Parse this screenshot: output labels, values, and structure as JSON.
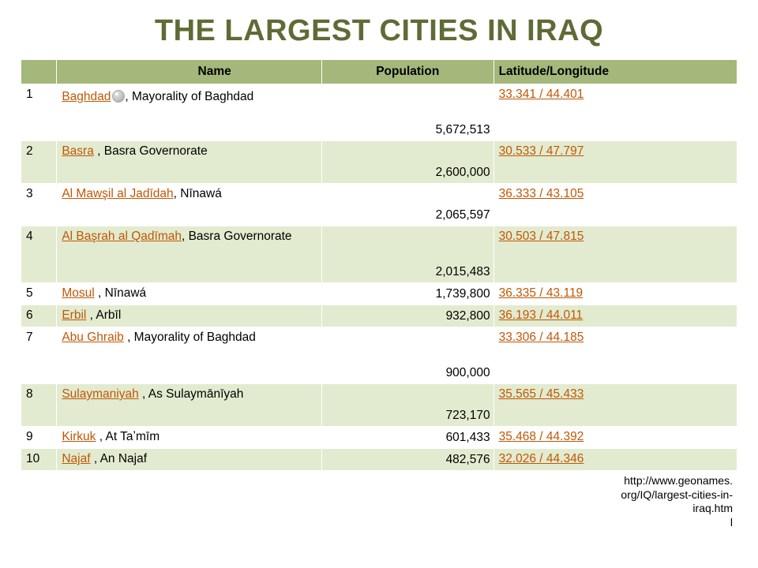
{
  "title": "THE LARGEST CITIES IN IRAQ",
  "headers": {
    "name": "Name",
    "population": "Population",
    "latlon": "Latitude/Longitude"
  },
  "rows": [
    {
      "rank": "1",
      "city": "Baghdad",
      "region": ", Mayorality of Baghdad",
      "population": "5,672,513",
      "coord": "33.341 / 44.401",
      "tall": "tall1",
      "icon": true
    },
    {
      "rank": "2",
      "city": "Basra",
      "region": " , Basra Governorate",
      "population": "2,600,000",
      "coord": "30.533 / 47.797",
      "tall": "tall2",
      "icon": false
    },
    {
      "rank": "3",
      "city": "Al Mawşil al Jadīdah",
      "region": ", Nīnawá",
      "population": "2,065,597",
      "coord": "36.333 / 43.105",
      "tall": "tall2",
      "icon": false
    },
    {
      "rank": "4",
      "city": "Al Başrah al Qadīmah",
      "region": ", Basra Governorate",
      "population": "2,015,483",
      "coord": "30.503 / 47.815",
      "tall": "tall1",
      "icon": false
    },
    {
      "rank": "5",
      "city": "Mosul",
      "region": " , Nīnawá",
      "population": "1,739,800",
      "coord": "36.335 / 43.119",
      "tall": "short",
      "icon": false
    },
    {
      "rank": "6",
      "city": "Erbil",
      "region": " , Arbīl",
      "population": "932,800",
      "coord": "36.193 / 44.011",
      "tall": "short",
      "icon": false
    },
    {
      "rank": "7",
      "city": "Abu Ghraib",
      "region": " , Mayorality of Baghdad",
      "population": "900,000",
      "coord": "33.306 / 44.185",
      "tall": "tall1",
      "icon": false
    },
    {
      "rank": "8",
      "city": "Sulaymaniyah",
      "region": " , As Sulaymānīyah",
      "population": "723,170",
      "coord": "35.565 / 45.433",
      "tall": "tall2",
      "icon": false
    },
    {
      "rank": "9",
      "city": "Kirkuk",
      "region": " , At Taʼmīm",
      "population": "601,433",
      "coord": "35.468 / 44.392",
      "tall": "short",
      "icon": false
    },
    {
      "rank": "10",
      "city": "Najaf",
      "region": " , An Najaf",
      "population": "482,576",
      "coord": "32.026 / 44.346",
      "tall": "short",
      "icon": false
    }
  ],
  "source_lines": [
    "http://www.geonames.",
    "org/IQ/largest-cities-in-",
    "iraq.htm",
    "l"
  ],
  "colors": {
    "title": "#5f6b35",
    "header_bg": "#a3b87a",
    "row_even_bg": "#e2ebcf",
    "row_odd_bg": "#ffffff",
    "link": "#c05806"
  }
}
